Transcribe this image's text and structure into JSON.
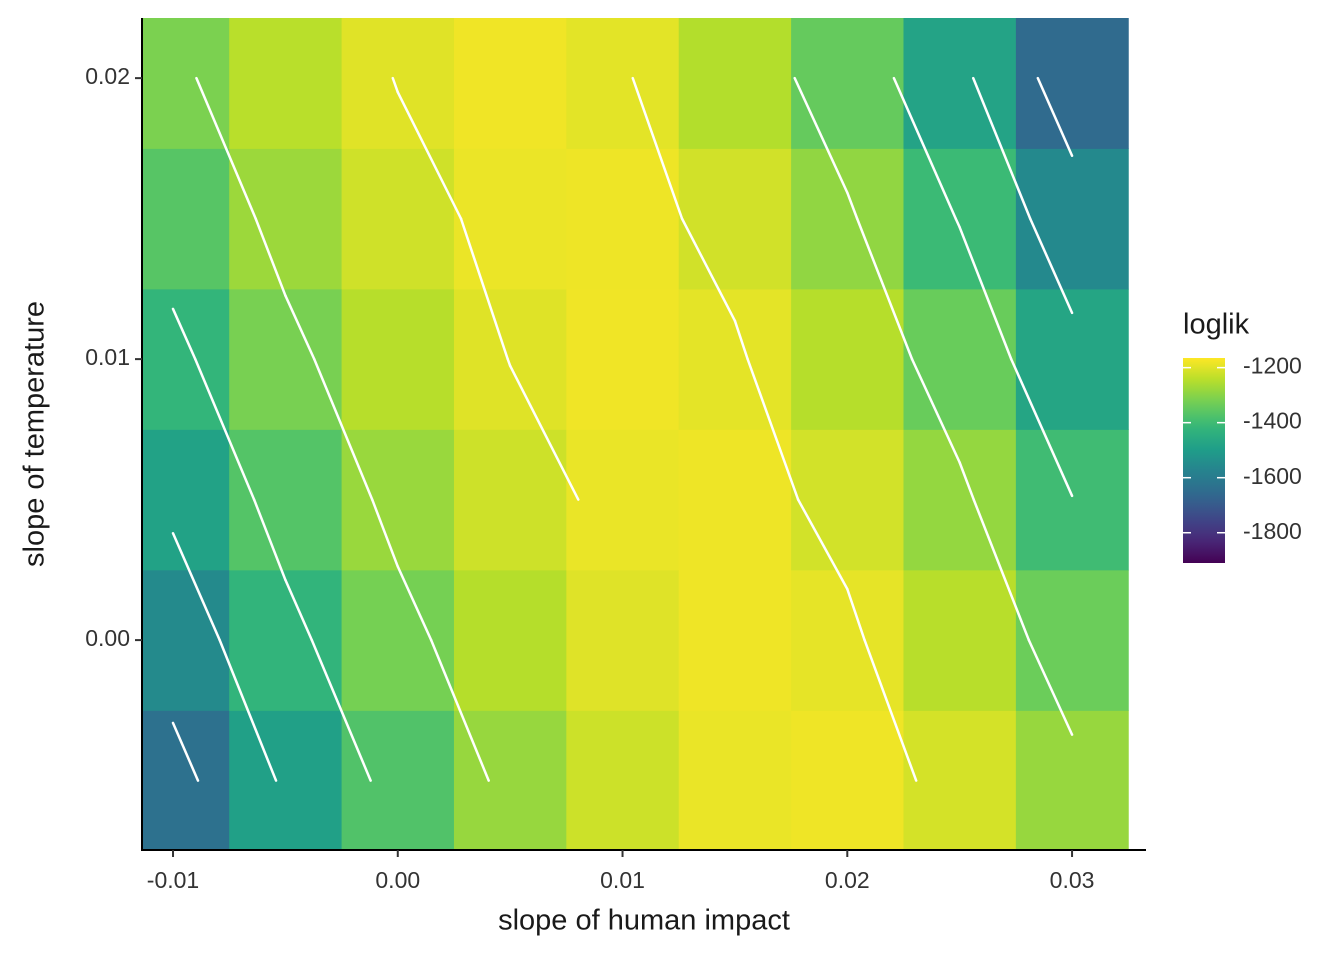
{
  "chart_data": {
    "type": "heatmap",
    "x_label": "slope of human impact",
    "y_label": "slope of temperature",
    "x": [
      -0.01,
      -0.005,
      0,
      0.005,
      0.01,
      0.015,
      0.02,
      0.025,
      0.03
    ],
    "y": [
      -0.005,
      0,
      0.005,
      0.01,
      0.015,
      0.02
    ],
    "z": [
      [
        -1632,
        -1488,
        -1372,
        -1283,
        -1221,
        -1187,
        -1181,
        -1212,
        -1283
      ],
      [
        -1554,
        -1424,
        -1322,
        -1248,
        -1200,
        -1181,
        -1192,
        -1244,
        -1335
      ],
      [
        -1483,
        -1368,
        -1280,
        -1220,
        -1187,
        -1182,
        -1214,
        -1286,
        -1398
      ],
      [
        -1420,
        -1319,
        -1245,
        -1199,
        -1180,
        -1194,
        -1247,
        -1339,
        -1472
      ],
      [
        -1364,
        -1277,
        -1218,
        -1186,
        -1182,
        -1216,
        -1290,
        -1404,
        -1557
      ],
      [
        -1315,
        -1243,
        -1198,
        -1180,
        -1195,
        -1250,
        -1344,
        -1479,
        -1653
      ]
    ],
    "xlim": [
      -0.01138,
      0.03329
    ],
    "ylim": [
      -0.00747,
      0.02214
    ],
    "xticks": [
      {
        "value": -0.01,
        "label": "-0.01"
      },
      {
        "value": 0,
        "label": "0.00"
      },
      {
        "value": 0.01,
        "label": "0.01"
      },
      {
        "value": 0.02,
        "label": "0.02"
      },
      {
        "value": 0.03,
        "label": "0.03"
      }
    ],
    "yticks": [
      {
        "value": 0,
        "label": "0.00"
      },
      {
        "value": 0.01,
        "label": "0.01"
      },
      {
        "value": 0.02,
        "label": "0.02"
      }
    ],
    "colormap": "viridis",
    "contour_color": "#ffffff",
    "contour_levels": [
      -1600,
      -1500,
      -1400,
      -1300,
      -1200
    ],
    "legend_title": "loglik",
    "zlim": [
      -1910,
      -1165
    ],
    "zticks": [
      -1200,
      -1400,
      -1600,
      -1800
    ]
  }
}
